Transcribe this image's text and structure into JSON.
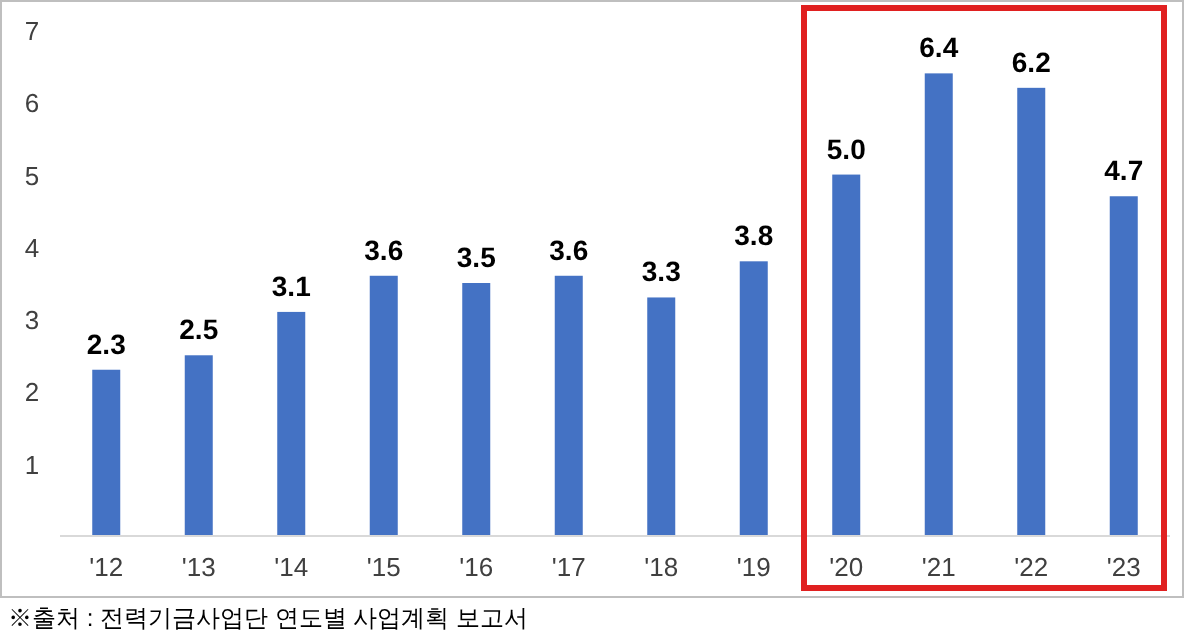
{
  "chart_data": {
    "type": "bar",
    "categories": [
      "'12",
      "'13",
      "'14",
      "'15",
      "'16",
      "'17",
      "'18",
      "'19",
      "'20",
      "'21",
      "'22",
      "'23"
    ],
    "values": [
      2.3,
      2.5,
      3.1,
      3.6,
      3.5,
      3.6,
      3.3,
      3.8,
      5.0,
      6.4,
      6.2,
      4.7
    ],
    "value_labels": [
      "2.3",
      "2.5",
      "3.1",
      "3.6",
      "3.5",
      "3.6",
      "3.3",
      "3.8",
      "5.0",
      "6.4",
      "6.2",
      "4.7"
    ],
    "color": "#4472c4",
    "ylim": [
      0,
      7
    ],
    "yticks": [
      1,
      2,
      3,
      4,
      5,
      6,
      7
    ],
    "annotations": [
      "※출처 : 전력기금사업단 연도별 사업계획 보고서"
    ]
  }
}
